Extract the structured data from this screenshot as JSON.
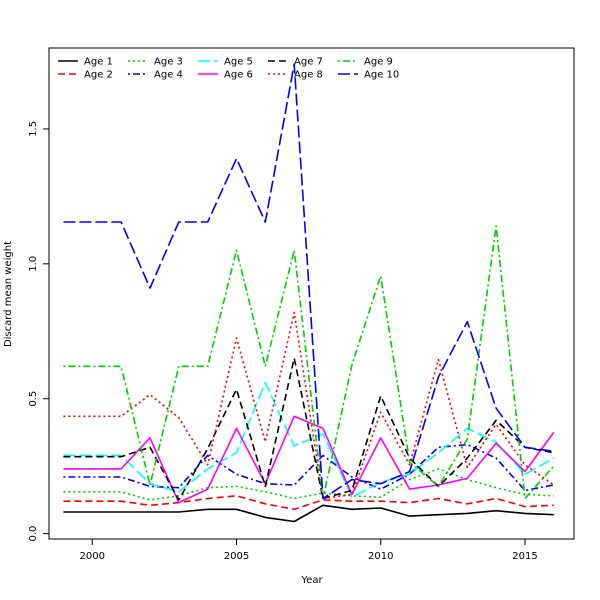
{
  "chart_data": {
    "type": "line",
    "title": "",
    "xlabel": "Year",
    "ylabel": "Discard mean weight",
    "xlim": [
      1998.5,
      2016.7
    ],
    "ylim": [
      -0.02,
      1.8
    ],
    "xticks": [
      2000,
      2005,
      2010,
      2015
    ],
    "yticks": [
      0.0,
      0.5,
      1.0,
      1.5
    ],
    "ytick_labels": [
      "0.0",
      "0.5",
      "1.0",
      "1.5"
    ],
    "legend_position": "top-left",
    "x": [
      1999,
      2000,
      2001,
      2002,
      2003,
      2004,
      2005,
      2006,
      2007,
      2008,
      2009,
      2010,
      2011,
      2012,
      2013,
      2014,
      2015,
      2016
    ],
    "series": [
      {
        "name": "Age 1",
        "color": "#000000",
        "dash": "solid",
        "values": [
          0.08,
          0.08,
          0.08,
          0.08,
          0.08,
          0.09,
          0.09,
          0.06,
          0.045,
          0.105,
          0.09,
          0.095,
          0.065,
          0.07,
          0.075,
          0.085,
          0.075,
          0.07
        ]
      },
      {
        "name": "Age 2",
        "color": "#ff0000",
        "dash": "dashed",
        "values": [
          0.12,
          0.12,
          0.12,
          0.105,
          0.115,
          0.13,
          0.14,
          0.11,
          0.09,
          0.125,
          0.12,
          0.12,
          0.115,
          0.13,
          0.11,
          0.13,
          0.1,
          0.105
        ]
      },
      {
        "name": "Age 3",
        "color": "#00cd00",
        "dash": "dotted",
        "values": [
          0.155,
          0.155,
          0.155,
          0.125,
          0.14,
          0.17,
          0.175,
          0.155,
          0.13,
          0.15,
          0.14,
          0.135,
          0.2,
          0.24,
          0.2,
          0.17,
          0.145,
          0.14
        ]
      },
      {
        "name": "Age 4",
        "color": "#0000ff",
        "dash": "dotdash",
        "values": [
          0.21,
          0.21,
          0.21,
          0.175,
          0.17,
          0.29,
          0.22,
          0.185,
          0.18,
          0.29,
          0.21,
          0.165,
          0.22,
          0.32,
          0.33,
          0.28,
          0.16,
          0.18
        ]
      },
      {
        "name": "Age 5",
        "color": "#00ffff",
        "dash": "longdash",
        "values": [
          0.29,
          0.29,
          0.29,
          0.185,
          0.155,
          0.24,
          0.3,
          0.56,
          0.325,
          0.37,
          0.135,
          0.19,
          0.22,
          0.3,
          0.39,
          0.34,
          0.22,
          0.28
        ]
      },
      {
        "name": "Age 6",
        "color": "#ff00ff",
        "dash": "solid",
        "values": [
          0.24,
          0.24,
          0.24,
          0.355,
          0.115,
          0.165,
          0.39,
          0.185,
          0.435,
          0.39,
          0.145,
          0.355,
          0.165,
          0.18,
          0.205,
          0.335,
          0.23,
          0.375
        ]
      },
      {
        "name": "Age 7",
        "color": "#000000",
        "dash": "dashed",
        "values": [
          0.285,
          0.285,
          0.285,
          0.32,
          0.125,
          0.315,
          0.535,
          0.175,
          0.65,
          0.13,
          0.16,
          0.51,
          0.28,
          0.175,
          0.28,
          0.42,
          0.32,
          0.3
        ]
      },
      {
        "name": "Age 8",
        "color": "#ff0000",
        "dash": "dotted",
        "values": [
          0.435,
          0.435,
          0.435,
          0.515,
          0.43,
          0.255,
          0.725,
          0.34,
          0.82,
          0.13,
          0.145,
          0.45,
          0.255,
          0.645,
          0.245,
          0.405,
          0.255,
          0.18
        ]
      },
      {
        "name": "Age 9",
        "color": "#00cd00",
        "dash": "dotdash",
        "values": [
          0.62,
          0.62,
          0.62,
          0.18,
          0.62,
          0.62,
          1.05,
          0.62,
          1.05,
          0.13,
          0.625,
          0.955,
          0.265,
          0.175,
          0.35,
          1.14,
          0.13,
          0.25
        ]
      },
      {
        "name": "Age 10",
        "color": "#0000ff",
        "dash": "longdash",
        "values": [
          1.155,
          1.155,
          1.155,
          0.91,
          1.155,
          1.155,
          1.39,
          1.155,
          1.74,
          0.13,
          0.2,
          0.185,
          0.23,
          0.58,
          0.785,
          0.465,
          0.32,
          0.305
        ]
      }
    ]
  }
}
